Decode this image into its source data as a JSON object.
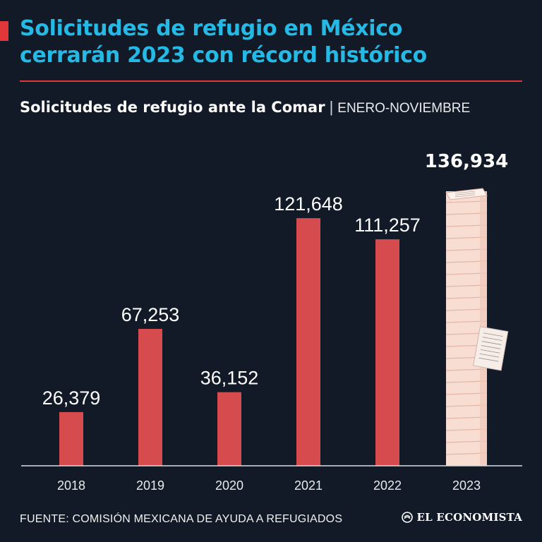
{
  "headline": {
    "line1": "Solicitudes de refugio en México",
    "line2": "cerrarán 2023 con récord histórico"
  },
  "subtitle": {
    "main": "Solicitudes de refugio ante la Comar",
    "separator": "|",
    "range": "ENERO-NOVIEMBRE"
  },
  "chart_data": {
    "type": "bar",
    "categories": [
      "2018",
      "2019",
      "2020",
      "2021",
      "2022",
      "2023"
    ],
    "values": [
      26379,
      67253,
      36152,
      121648,
      111257,
      136934
    ],
    "value_labels": [
      "26,379",
      "67,253",
      "36,152",
      "121,648",
      "111,257",
      "136,934"
    ],
    "highlighted_category": "2023",
    "ylim": [
      0,
      136934
    ],
    "grid": false,
    "colors": {
      "bar": "#d64b4d",
      "highlight_bar": "#f7ddd2",
      "axis": "#d9dde2"
    }
  },
  "footer": {
    "source": "FUENTE: COMISIÓN MEXICANA DE AYUDA A REFUGIADOS",
    "brand": "EL ECONOMISTA",
    "brand_icon": "globe-icon"
  },
  "colors": {
    "background": "#111a26",
    "headline": "#25b9e6",
    "accent": "#e1373a"
  }
}
